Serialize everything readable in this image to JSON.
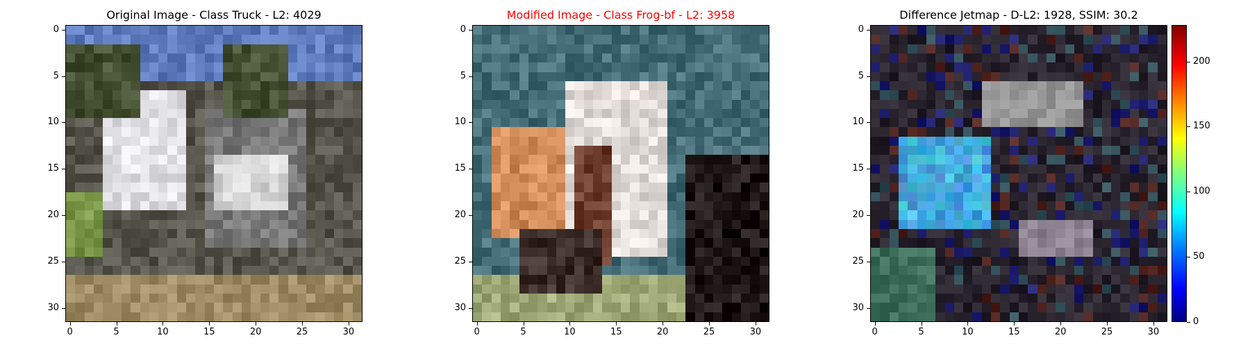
{
  "panels": [
    {
      "title": "Original Image - Class Truck - L2: 4029",
      "scheme": "truck"
    },
    {
      "title": "Modified Image - Class Frog-bf - L2: 3958",
      "scheme": "frog"
    },
    {
      "title": "Difference Jetmap - D-L2: 1928, SSIM: 30.2",
      "scheme": "diff"
    }
  ],
  "axes": {
    "ticks": [
      "0",
      "5",
      "10",
      "15",
      "20",
      "25",
      "30"
    ],
    "range": [
      -0.5,
      31.5
    ]
  },
  "colorbar": {
    "ticks": [
      "0",
      "50",
      "100",
      "150",
      "200"
    ],
    "range": [
      0,
      228
    ]
  },
  "colors": {
    "title_highlight": "#ff0000"
  }
}
